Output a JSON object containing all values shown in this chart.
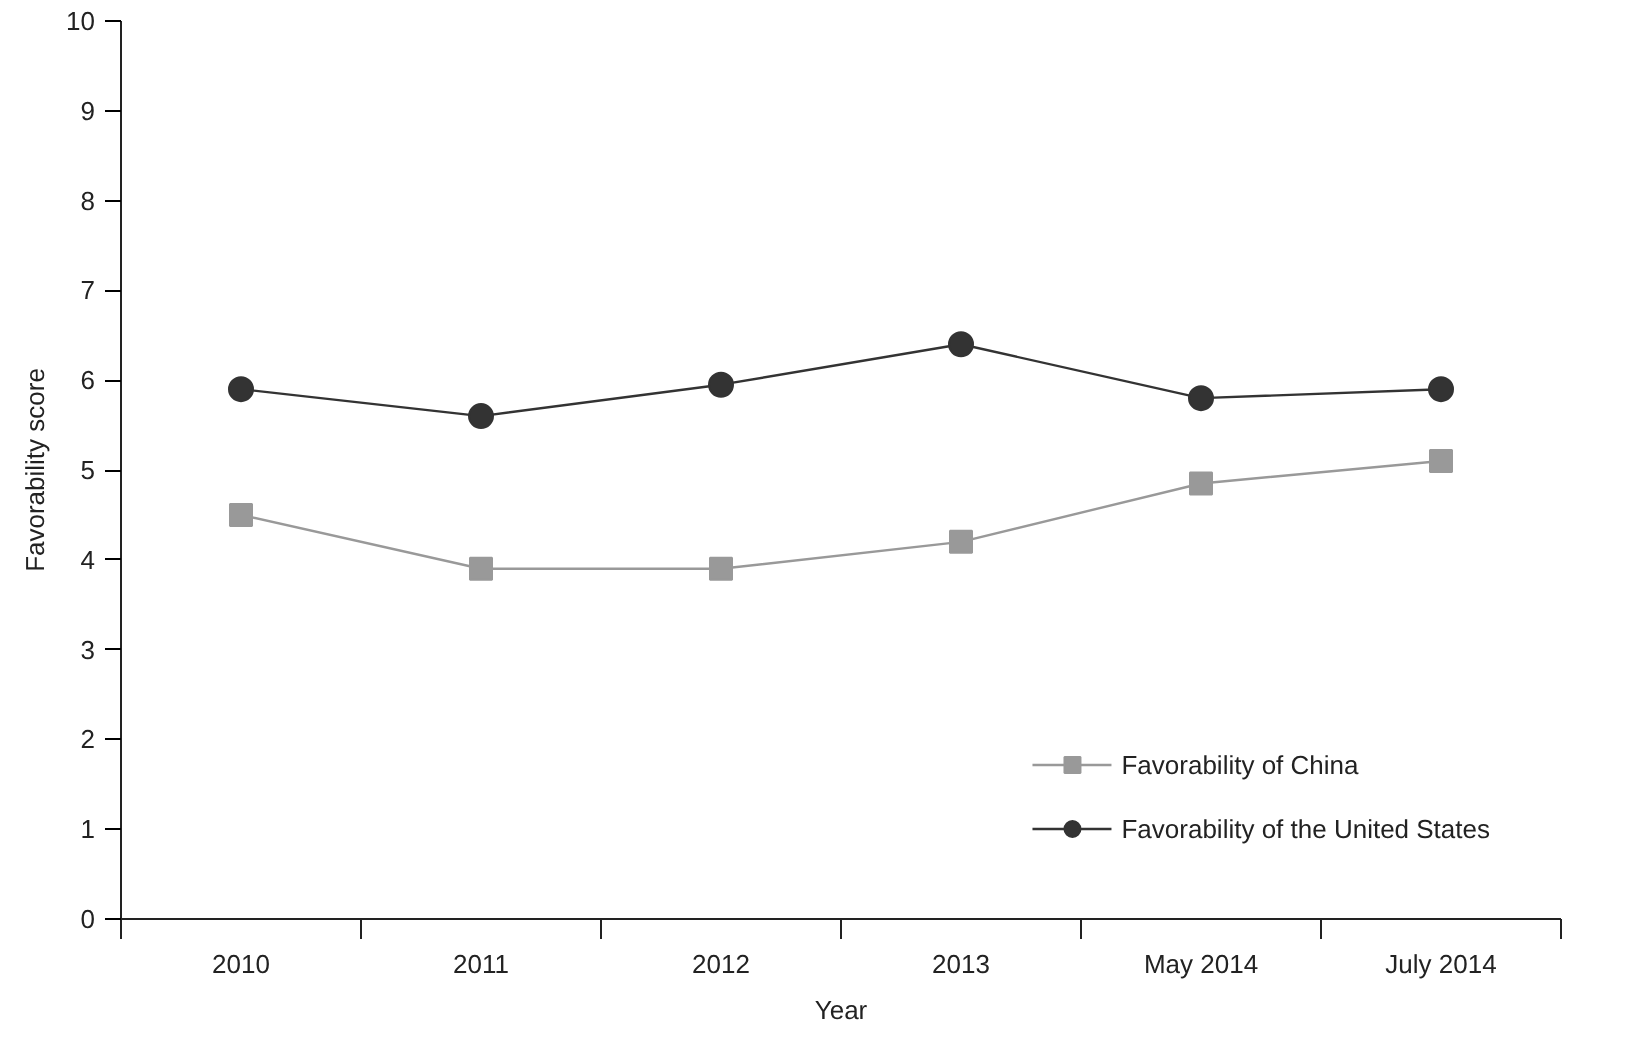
{
  "chart_data": {
    "type": "line",
    "xlabel": "Year",
    "ylabel": "Favorability score",
    "categories": [
      "2010",
      "2011",
      "2012",
      "2013",
      "May 2014",
      "July 2014"
    ],
    "ylim": [
      0,
      10
    ],
    "yticks": [
      0,
      1,
      2,
      3,
      4,
      5,
      6,
      7,
      8,
      9,
      10
    ],
    "grid": false,
    "legend": "bottom right",
    "series": [
      {
        "name": "Favorability of China",
        "color": "#999999",
        "marker": "square",
        "values": [
          4.5,
          3.9,
          3.9,
          4.2,
          4.85,
          5.1
        ]
      },
      {
        "name": "Favorability of the United States",
        "color": "#333333",
        "marker": "circle",
        "values": [
          5.9,
          5.6,
          5.95,
          6.4,
          5.8,
          5.9
        ]
      }
    ]
  }
}
